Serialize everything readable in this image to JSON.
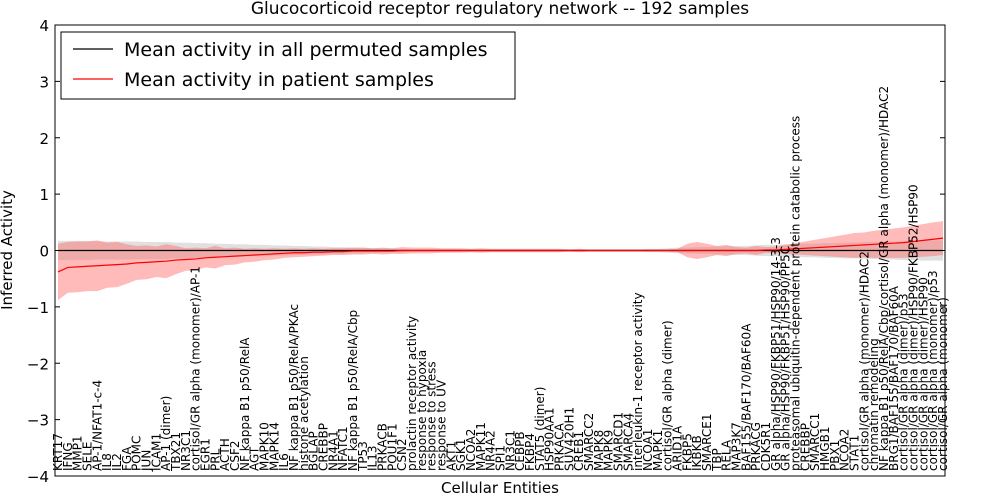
{
  "chart_data": {
    "type": "line",
    "title": "Glucocorticoid receptor regulatory network -- 192 samples",
    "xlabel": "Cellular Entities",
    "ylabel": "Inferred Activity",
    "ylim": [
      -4,
      4
    ],
    "yticks": [
      "4",
      "3",
      "2",
      "1",
      "0",
      "−1",
      "−2",
      "−3",
      "−4"
    ],
    "legend_position": "top-left",
    "categories": [
      "KRT17",
      "IFNG",
      "MMP1",
      "SELE",
      "AP-1/NFAT1-c-4",
      "IL8",
      "IL2",
      "FGA",
      "POMC",
      "JUN",
      "ICAM1",
      "AP-1 (dimer)",
      "TBX21",
      "NR3C1",
      "cortisol/GR alpha (monomer)/AP-1",
      "EGR1",
      "PRL",
      "ACTH",
      "CSF2",
      "NF kappa B1 p50/RelA",
      "AGT",
      "MAPK10",
      "MAPK14",
      "IL6",
      "NF kappa B1 p50/RelA/PKAc",
      "histone acetylation",
      "BGLAP",
      "CREBBP",
      "NR4A1",
      "NFATC1",
      "NF kappa B1 p50/RelA/Cbp",
      "TP53",
      "IL13",
      "PRKACB",
      "POU1F1",
      "CSN2",
      "prolactin receptor activity",
      "response to hypoxia",
      "response to stress",
      "response to UV",
      "AKT1",
      "SGK1",
      "NCOA2",
      "MAPK11",
      "NR4A2",
      "SPI1",
      "NR3C1",
      "CEBPB",
      "FKBP4",
      "STAT5 (dimer)",
      "HSP90AA1",
      "PRKACA",
      "SUV420H1",
      "CREB1",
      "SMARCC2",
      "MAPK8",
      "MAPK9",
      "SMARCD1",
      "SMARCA4",
      "interleukin-1 receptor activity",
      "NCOA1",
      "MAPK1",
      "cortisol/GR alpha (dimer)",
      "ARID1A",
      "FKBP5",
      "IKBKB",
      "SMARCE1",
      "TBP",
      "RELA",
      "MAP3K7",
      "BAF155/BAF170/BAF60A",
      "PRKACG",
      "CDK5R1",
      "GR alpha/HSP90/FKBP51/HSP90/14-3-3",
      "GR alpha/HSP90/FKBP51/HSP90/PP5C",
      "proteasomal ubiquitin-dependent protein catabolic process",
      "CREBBP",
      "SMARCC1",
      "HMGB1",
      "PBX1",
      "NCOA2",
      "STAT1",
      "cortisol/GR alpha (monomer)/HDAC2",
      "chromatin remodeling",
      "NF kappa B1 p50/RelA/Cbp/cortisol/GR alpha (monomer)/HDAC2",
      "BRG1/BAF155/BAF170/BAF60A",
      "cortisol/GR alpha (dimer)/p53",
      "cortisol/GR alpha (dimer)/HSP90/FKBP52/HSP90",
      "cortisol/GR alpha (dimer)/HSP90",
      "cortisol/GR alpha (monomer)/p53",
      "cortisol/GR alpha (monomer)"
    ],
    "series": [
      {
        "name": "Mean activity in all permuted samples",
        "color": "#000000",
        "values": [
          0.0,
          0.0,
          0.0,
          0.0,
          0.0,
          0.0,
          0.0,
          0.0,
          0.0,
          0.0,
          0.0,
          0.0,
          0.0,
          0.0,
          0.0,
          0.0,
          0.0,
          0.0,
          0.0,
          0.0,
          0.0,
          0.0,
          0.0,
          0.0,
          0.0,
          0.0,
          0.0,
          0.0,
          0.0,
          0.0,
          0.0,
          0.0,
          0.0,
          0.0,
          0.0,
          0.0,
          0.0,
          0.0,
          0.0,
          0.0,
          0.0,
          0.0,
          0.0,
          0.0,
          0.0,
          0.0,
          0.0,
          0.0,
          0.0,
          0.0,
          0.0,
          0.0,
          0.0,
          0.0,
          0.0,
          0.0,
          0.0,
          0.0,
          0.0,
          0.0,
          0.0,
          0.0,
          0.0,
          0.0,
          0.0,
          0.0,
          0.0,
          0.0,
          0.0,
          0.0,
          0.0,
          0.0,
          0.0,
          0.0,
          0.0,
          0.0,
          0.0,
          0.0,
          0.0,
          0.0,
          0.0,
          0.0,
          0.0,
          0.0,
          0.0,
          0.0,
          0.0,
          0.0,
          0.0,
          0.0,
          0.0
        ],
        "band": [
          0.17,
          0.17,
          0.17,
          0.17,
          0.16,
          0.16,
          0.16,
          0.16,
          0.16,
          0.15,
          0.15,
          0.15,
          0.14,
          0.14,
          0.13,
          0.13,
          0.12,
          0.12,
          0.11,
          0.11,
          0.1,
          0.1,
          0.09,
          0.09,
          0.08,
          0.08,
          0.07,
          0.07,
          0.06,
          0.06,
          0.05,
          0.05,
          0.04,
          0.04,
          0.03,
          0.03,
          0.02,
          0.02,
          0.02,
          0.02,
          0.02,
          0.02,
          0.02,
          0.02,
          0.02,
          0.02,
          0.02,
          0.02,
          0.02,
          0.02,
          0.02,
          0.02,
          0.02,
          0.02,
          0.02,
          0.02,
          0.02,
          0.02,
          0.02,
          0.02,
          0.03,
          0.03,
          0.04,
          0.05,
          0.05,
          0.06,
          0.06,
          0.07,
          0.07,
          0.08,
          0.08,
          0.09,
          0.1,
          0.1,
          0.11,
          0.11,
          0.12,
          0.12,
          0.13,
          0.13,
          0.14,
          0.14,
          0.15,
          0.15,
          0.16,
          0.16,
          0.17,
          0.17,
          0.18,
          0.18,
          0.18
        ],
        "band_color": "#bbbbbb"
      },
      {
        "name": "Mean activity in patient samples",
        "color": "#ff0000",
        "values": [
          -0.38,
          -0.3,
          -0.29,
          -0.28,
          -0.27,
          -0.26,
          -0.25,
          -0.24,
          -0.22,
          -0.21,
          -0.2,
          -0.19,
          -0.17,
          -0.16,
          -0.15,
          -0.13,
          -0.12,
          -0.11,
          -0.1,
          -0.09,
          -0.08,
          -0.07,
          -0.06,
          -0.05,
          -0.04,
          -0.04,
          -0.03,
          -0.03,
          -0.02,
          -0.02,
          -0.01,
          -0.01,
          -0.01,
          -0.01,
          -0.01,
          0.0,
          0.0,
          0.0,
          0.0,
          0.0,
          0.0,
          0.0,
          0.0,
          0.0,
          0.0,
          0.0,
          0.0,
          0.0,
          0.0,
          0.0,
          0.0,
          0.0,
          0.0,
          0.0,
          0.0,
          0.0,
          0.0,
          0.0,
          0.0,
          0.0,
          0.0,
          0.0,
          0.0,
          0.0,
          0.0,
          0.0,
          0.0,
          0.0,
          0.0,
          0.0,
          0.0,
          0.0,
          0.01,
          0.01,
          0.02,
          0.03,
          0.04,
          0.05,
          0.06,
          0.07,
          0.08,
          0.09,
          0.1,
          0.11,
          0.12,
          0.13,
          0.14,
          0.16,
          0.18,
          0.2,
          0.22
        ],
        "band": [
          0.5,
          0.45,
          0.45,
          0.44,
          0.45,
          0.4,
          0.4,
          0.35,
          0.3,
          0.3,
          0.27,
          0.3,
          0.25,
          0.2,
          0.2,
          0.17,
          0.2,
          0.15,
          0.15,
          0.12,
          0.12,
          0.1,
          0.1,
          0.08,
          0.08,
          0.07,
          0.07,
          0.06,
          0.06,
          0.06,
          0.06,
          0.06,
          0.05,
          0.06,
          0.05,
          0.06,
          0.05,
          0.05,
          0.05,
          0.04,
          0.04,
          0.04,
          0.03,
          0.04,
          0.03,
          0.03,
          0.03,
          0.03,
          0.03,
          0.03,
          0.03,
          0.03,
          0.02,
          0.03,
          0.02,
          0.02,
          0.02,
          0.02,
          0.02,
          0.02,
          0.02,
          0.02,
          0.02,
          0.03,
          0.12,
          0.15,
          0.12,
          0.08,
          0.1,
          0.06,
          0.05,
          0.08,
          0.05,
          0.06,
          0.08,
          0.1,
          0.12,
          0.14,
          0.16,
          0.18,
          0.2,
          0.22,
          0.22,
          0.24,
          0.25,
          0.26,
          0.27,
          0.28,
          0.29,
          0.3,
          0.3
        ],
        "band_color": "#ff6666"
      }
    ]
  }
}
